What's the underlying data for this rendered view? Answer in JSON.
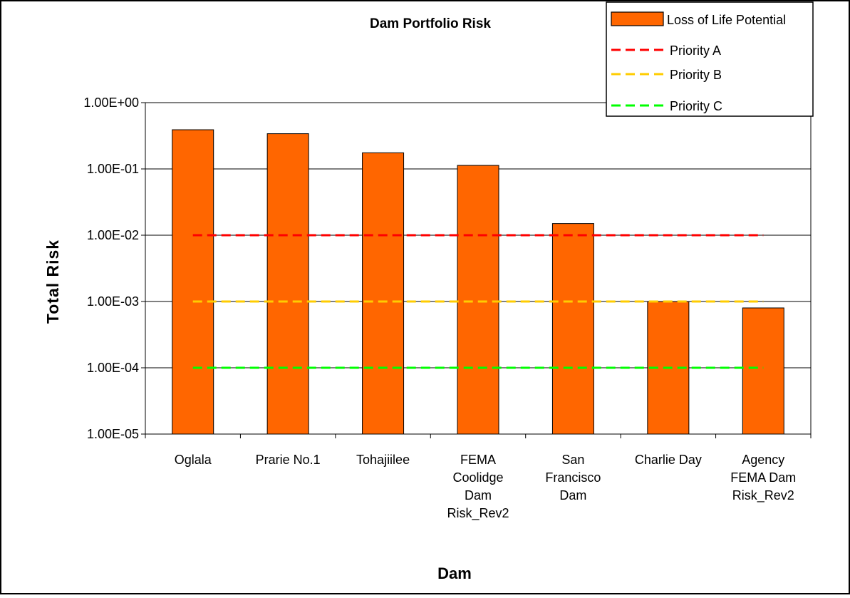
{
  "colors": {
    "bar_fill": "#FF6600",
    "bar_stroke": "#000000",
    "priority_a": "#FF0000",
    "priority_b": "#FFCC00",
    "priority_c": "#00FF00",
    "gridline": "#000000",
    "background": "#FFFFFF"
  },
  "chart_data": {
    "type": "bar",
    "title": "Dam Portfolio Risk",
    "xlabel": "Dam",
    "ylabel": "Total Risk",
    "y_scale": "log",
    "ylim": [
      1e-05,
      1
    ],
    "yticks": [
      1,
      0.1,
      0.01,
      0.001,
      0.0001,
      1e-05
    ],
    "ytick_labels": [
      "1.00E+00",
      "1.00E-01",
      "1.00E-02",
      "1.00E-03",
      "1.00E-04",
      "1.00E-05"
    ],
    "grid": true,
    "legend_position": "top-right",
    "categories": [
      [
        "Oglala"
      ],
      [
        "Prarie No.1"
      ],
      [
        "Tohajiilee"
      ],
      [
        "FEMA",
        "Coolidge",
        "Dam",
        "Risk_Rev2"
      ],
      [
        "San",
        "Francisco",
        "Dam"
      ],
      [
        "Charlie Day"
      ],
      [
        "Agency",
        "FEMA Dam",
        "Risk_Rev2"
      ]
    ],
    "series": [
      {
        "name": "Loss of Life Potential",
        "kind": "bar",
        "color": "#FF6600",
        "values": [
          0.39,
          0.34,
          0.175,
          0.113,
          0.015,
          0.001,
          0.0008
        ]
      },
      {
        "name": "Priority A",
        "kind": "dashed-line",
        "color": "#FF0000",
        "values": [
          0.01,
          0.01,
          0.01,
          0.01,
          0.01,
          0.01,
          0.01
        ]
      },
      {
        "name": "Priority B",
        "kind": "dashed-line",
        "color": "#FFCC00",
        "values": [
          0.001,
          0.001,
          0.001,
          0.001,
          0.001,
          0.001,
          0.001
        ]
      },
      {
        "name": "Priority C",
        "kind": "dashed-line",
        "color": "#00FF00",
        "values": [
          0.0001,
          0.0001,
          0.0001,
          0.0001,
          0.0001,
          0.0001,
          0.0001
        ]
      }
    ]
  }
}
